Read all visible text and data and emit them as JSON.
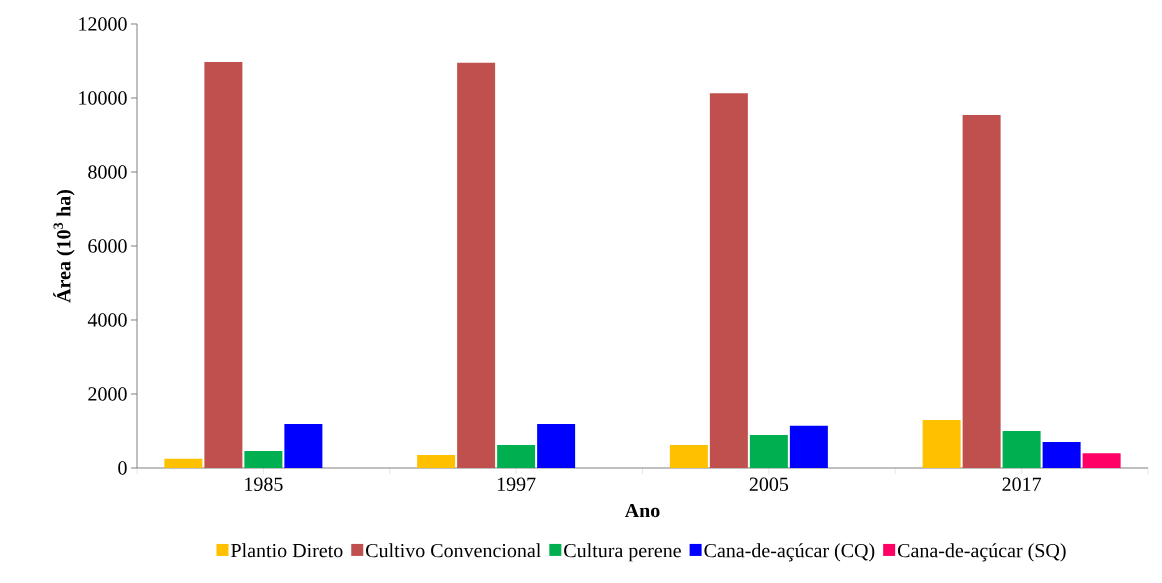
{
  "chart_data": {
    "type": "bar",
    "xlabel": "Ano",
    "ylabel": "Área (10$^{3}$ ha)",
    "categories": [
      "1985",
      "1997",
      "2005",
      "2017"
    ],
    "series": [
      {
        "name": "Plantio Direto",
        "color": "#ffc000",
        "values": [
          250,
          350,
          620,
          1300
        ]
      },
      {
        "name": "Cultivo Convencional",
        "color": "#c0504d",
        "values": [
          10970,
          10950,
          10130,
          9540
        ]
      },
      {
        "name": "Cultura perene",
        "color": "#00b050",
        "values": [
          460,
          620,
          890,
          1000
        ]
      },
      {
        "name": "Cana-de-açúcar (CQ)",
        "color": "#0000ff",
        "values": [
          1190,
          1190,
          1140,
          700
        ]
      },
      {
        "name": "Cana-de-açúcar (SQ)",
        "color": "#ff0066",
        "values": [
          null,
          null,
          null,
          400
        ]
      }
    ],
    "ylim": [
      0,
      12000
    ],
    "yticks": [
      0,
      2000,
      4000,
      6000,
      8000,
      10000,
      12000
    ],
    "legend": "bottom"
  }
}
